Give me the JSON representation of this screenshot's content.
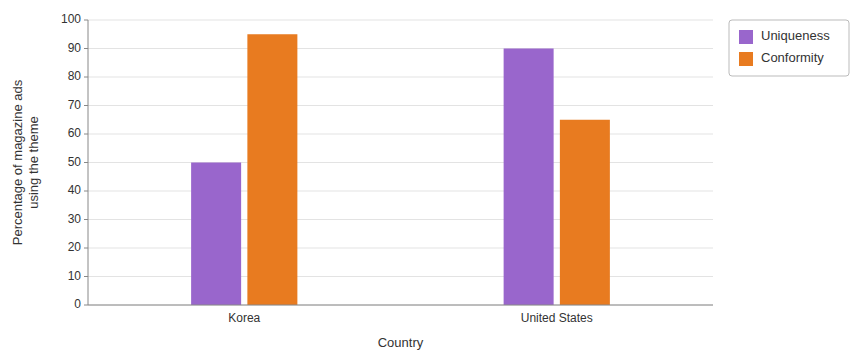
{
  "chart_data": {
    "type": "bar",
    "categories": [
      "Korea",
      "United States"
    ],
    "series": [
      {
        "name": "Uniqueness",
        "color": "#9966CC",
        "values": [
          50,
          90
        ]
      },
      {
        "name": "Conformity",
        "color": "#E87B20",
        "values": [
          95,
          65
        ]
      }
    ],
    "xlabel": "Country",
    "ylabel": "Percentage of magazine ads\nusing the theme",
    "ylim": [
      0,
      100
    ],
    "yticks": [
      0,
      10,
      20,
      30,
      40,
      50,
      60,
      70,
      80,
      90,
      100
    ],
    "grid": true,
    "legend": "upper right"
  }
}
